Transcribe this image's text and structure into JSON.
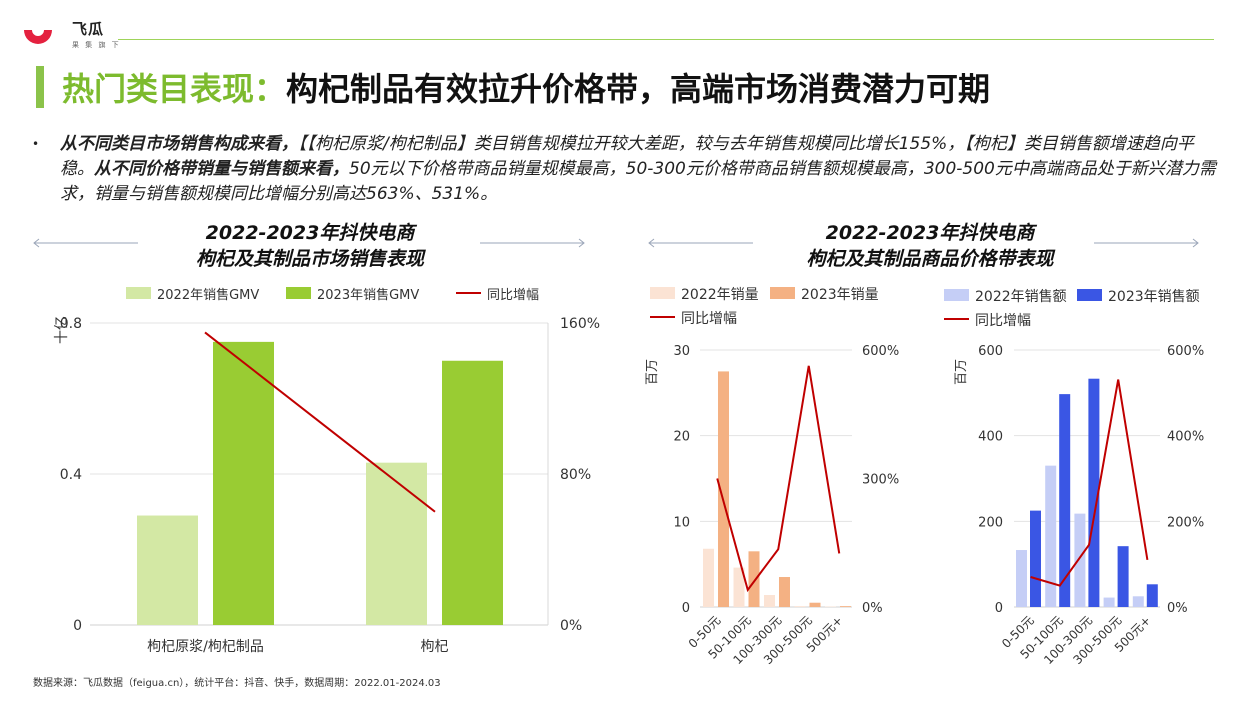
{
  "brand": {
    "name": "飞瓜",
    "slogan": "果 集 旗 下",
    "accent": "#e4213f"
  },
  "slide": {
    "title_highlight": "热门类目表现：",
    "title_rest": "构杞制品有效拉升价格带，高端市场消费潜力可期",
    "bullet_parts": [
      {
        "bold": true,
        "text": "从不同类目市场销售构成来看，"
      },
      {
        "bold": false,
        "text": "【【枸杞原浆/枸杞制品】类目销售规模拉开较大差距，较与去年销售规模同比增长155%，【枸杞】类目销售额增速趋向平稳。"
      },
      {
        "bold": true,
        "text": "从不同价格带销量与销售额来看，"
      },
      {
        "bold": false,
        "text": "50元以下价格带商品销量规模最高，50-300元价格带商品销售额规模最高，300-500元中高端商品处于新兴潜力需求，销量与销售额规模同比增幅分别高达563%、531%。"
      }
    ],
    "source": "数据来源：飞瓜数据（feigua.cn），统计平台：抖音、快手，数据周期：2022.01-2024.03"
  },
  "chart_data": [
    {
      "type": "bar",
      "title": "2022-2023年抖快电商\n枸杞及其制品市场销售表现",
      "ylabel": "十亿",
      "categories": [
        "枸杞原浆/枸杞制品",
        "枸杞"
      ],
      "series": [
        {
          "name": "2022年销售GMV",
          "type": "bar",
          "axis": "left",
          "color": "#d3e8a4",
          "values": [
            0.29,
            0.43
          ]
        },
        {
          "name": "2023年销售GMV",
          "type": "bar",
          "axis": "left",
          "color": "#99cc33",
          "values": [
            0.75,
            0.7
          ]
        },
        {
          "name": "同比增幅",
          "type": "line",
          "axis": "right",
          "color": "#c00000",
          "values": [
            155,
            60
          ]
        }
      ],
      "ylim": [
        0,
        0.8
      ],
      "yticks": [
        "0",
        "0.4",
        "0.8"
      ],
      "y2lim": [
        0,
        160
      ],
      "y2ticks": [
        "0%",
        "80%",
        "160%"
      ],
      "legend": "top"
    },
    {
      "type": "bar",
      "title": "2022-2023年抖快电商\n枸杞及其制品商品价格带表现",
      "ylabel": "百万",
      "categories": [
        "0-50元",
        "50-100元",
        "100-300元",
        "300-500元",
        "500元+"
      ],
      "series": [
        {
          "name": "2022年销量",
          "type": "bar",
          "axis": "left",
          "color": "#fbe3d4",
          "values": [
            6.8,
            4.6,
            1.4,
            0.1,
            0.05
          ]
        },
        {
          "name": "2023年销量",
          "type": "bar",
          "axis": "left",
          "color": "#f4b183",
          "values": [
            27.5,
            6.5,
            3.5,
            0.5,
            0.1
          ]
        },
        {
          "name": "同比增幅",
          "type": "line",
          "axis": "right",
          "color": "#c00000",
          "values": [
            300,
            40,
            135,
            563,
            125
          ]
        }
      ],
      "ylim": [
        0,
        30
      ],
      "yticks": [
        "0",
        "10",
        "20",
        "30"
      ],
      "y2lim": [
        0,
        600
      ],
      "y2ticks": [
        "0%",
        "300%",
        "600%"
      ],
      "legend": "top-left"
    },
    {
      "type": "bar",
      "ylabel": "百万",
      "categories": [
        "0-50元",
        "50-100元",
        "100-300元",
        "300-500元",
        "500元+"
      ],
      "series": [
        {
          "name": "2022年销售额",
          "type": "bar",
          "axis": "left",
          "color": "#c5cef6",
          "values": [
            133,
            330,
            218,
            22,
            25
          ]
        },
        {
          "name": "2023年销售额",
          "type": "bar",
          "axis": "left",
          "color": "#3a56e4",
          "values": [
            225,
            497,
            533,
            142,
            53
          ]
        },
        {
          "name": "同比增幅",
          "type": "line",
          "axis": "right",
          "color": "#c00000",
          "values": [
            70,
            50,
            145,
            531,
            110
          ]
        }
      ],
      "ylim": [
        0,
        600
      ],
      "yticks": [
        "0",
        "200",
        "400",
        "600"
      ],
      "y2lim": [
        0,
        600
      ],
      "y2ticks": [
        "0%",
        "200%",
        "400%",
        "600%"
      ],
      "legend": "top"
    }
  ]
}
